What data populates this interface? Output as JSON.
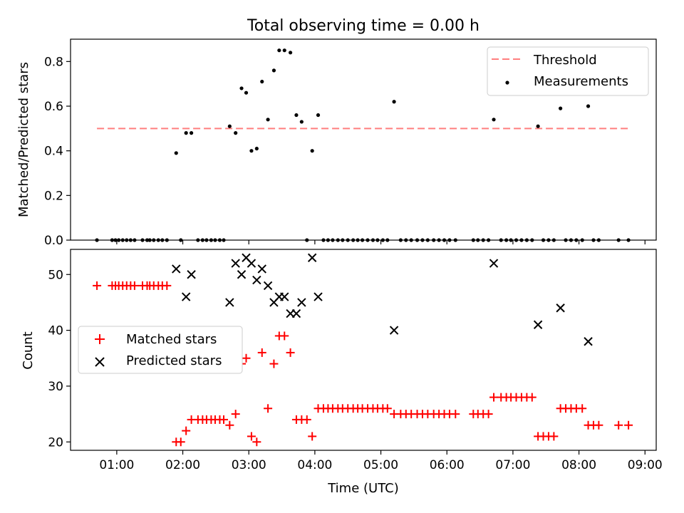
{
  "figure": {
    "title": "Total observing time = 0.00 h",
    "xlabel": "Time (UTC)",
    "xticks": [
      {
        "value": 1,
        "label": "01:00"
      },
      {
        "value": 2,
        "label": "02:00"
      },
      {
        "value": 3,
        "label": "03:00"
      },
      {
        "value": 4,
        "label": "04:00"
      },
      {
        "value": 5,
        "label": "05:00"
      },
      {
        "value": 6,
        "label": "06:00"
      },
      {
        "value": 7,
        "label": "07:00"
      },
      {
        "value": 8,
        "label": "08:00"
      },
      {
        "value": 9,
        "label": "09:00"
      }
    ],
    "xlim": [
      0.3,
      9.17
    ]
  },
  "chart_data": [
    {
      "type": "scatter",
      "ylabel": "Matched/Predicted stars",
      "ylim": [
        0,
        0.9
      ],
      "yticks": [
        0.0,
        0.2,
        0.4,
        0.6,
        0.8
      ],
      "ytick_labels": [
        "0.0",
        "0.2",
        "0.4",
        "0.6",
        "0.8"
      ],
      "legend_position": "top-right",
      "threshold": {
        "name": "Threshold",
        "y": 0.5,
        "x": [
          0.7,
          8.75
        ],
        "color": "#ff7f7f"
      },
      "measurements": {
        "name": "Measurements",
        "color": "#000000",
        "x": [
          0.7,
          0.93,
          0.98,
          1.03,
          1.09,
          1.15,
          1.21,
          1.27,
          1.39,
          1.46,
          1.5,
          1.56,
          1.63,
          1.69,
          1.76,
          1.9,
          1.97,
          2.05,
          2.13,
          2.23,
          2.3,
          2.36,
          2.43,
          2.49,
          2.56,
          2.62,
          2.71,
          2.8,
          2.89,
          2.96,
          3.04,
          3.12,
          3.2,
          3.29,
          3.38,
          3.46,
          3.54,
          3.63,
          3.72,
          3.8,
          3.88,
          3.96,
          4.05,
          4.13,
          4.2,
          4.27,
          4.35,
          4.42,
          4.5,
          4.58,
          4.65,
          4.72,
          4.8,
          4.88,
          4.95,
          5.03,
          5.1,
          5.2,
          5.3,
          5.38,
          5.46,
          5.55,
          5.63,
          5.71,
          5.8,
          5.88,
          5.96,
          6.04,
          6.13,
          6.4,
          6.47,
          6.55,
          6.63,
          6.71,
          6.82,
          6.9,
          6.97,
          7.05,
          7.13,
          7.21,
          7.29,
          7.38,
          7.46,
          7.54,
          7.62,
          7.72,
          7.8,
          7.88,
          7.96,
          8.05,
          8.14,
          8.22,
          8.3,
          8.6,
          8.75
        ],
        "y": [
          0,
          0,
          0,
          0,
          0,
          0,
          0,
          0,
          0,
          0,
          0,
          0,
          0,
          0,
          0,
          0.39,
          0,
          0.48,
          0.48,
          0,
          0,
          0,
          0,
          0,
          0,
          0,
          0.51,
          0.48,
          0.68,
          0.66,
          0.4,
          0.41,
          0.71,
          0.54,
          0.76,
          0.85,
          0.85,
          0.84,
          0.56,
          0.53,
          0,
          0.4,
          0.56,
          0,
          0,
          0,
          0,
          0,
          0,
          0,
          0,
          0,
          0,
          0,
          0,
          0,
          0,
          0.62,
          0,
          0,
          0,
          0,
          0,
          0,
          0,
          0,
          0,
          0,
          0,
          0,
          0,
          0,
          0,
          0.54,
          0,
          0,
          0,
          0,
          0,
          0,
          0,
          0.51,
          0,
          0,
          0,
          0.59,
          0,
          0,
          0,
          0,
          0.6,
          0,
          0,
          0,
          0
        ]
      }
    },
    {
      "type": "scatter",
      "ylabel": "Count",
      "ylim": [
        18.5,
        54.5
      ],
      "yticks": [
        20,
        30,
        40,
        50
      ],
      "ytick_labels": [
        "20",
        "30",
        "40",
        "50"
      ],
      "legend_position": "center-left",
      "series": [
        {
          "name": "Matched stars",
          "marker": "+",
          "color": "#ff0000",
          "x": [
            0.7,
            0.93,
            0.98,
            1.03,
            1.09,
            1.15,
            1.21,
            1.27,
            1.39,
            1.46,
            1.5,
            1.56,
            1.63,
            1.69,
            1.76,
            1.9,
            1.97,
            2.05,
            2.13,
            2.23,
            2.3,
            2.36,
            2.43,
            2.49,
            2.56,
            2.62,
            2.71,
            2.8,
            2.89,
            2.96,
            3.04,
            3.12,
            3.2,
            3.29,
            3.38,
            3.46,
            3.54,
            3.63,
            3.72,
            3.8,
            3.88,
            3.96,
            4.05,
            4.13,
            4.2,
            4.27,
            4.35,
            4.42,
            4.5,
            4.58,
            4.65,
            4.72,
            4.8,
            4.88,
            4.95,
            5.03,
            5.1,
            5.2,
            5.3,
            5.38,
            5.46,
            5.55,
            5.63,
            5.71,
            5.8,
            5.88,
            5.96,
            6.04,
            6.13,
            6.4,
            6.47,
            6.55,
            6.63,
            6.71,
            6.82,
            6.9,
            6.97,
            7.05,
            7.13,
            7.21,
            7.29,
            7.38,
            7.46,
            7.54,
            7.62,
            7.72,
            7.8,
            7.88,
            7.96,
            8.05,
            8.14,
            8.22,
            8.3,
            8.6,
            8.75
          ],
          "y": [
            48,
            48,
            48,
            48,
            48,
            48,
            48,
            48,
            48,
            48,
            48,
            48,
            48,
            48,
            48,
            20,
            20,
            22,
            24,
            24,
            24,
            24,
            24,
            24,
            24,
            24,
            23,
            25,
            34,
            35,
            21,
            20,
            36,
            26,
            34,
            39,
            39,
            36,
            24,
            24,
            24,
            21,
            26,
            26,
            26,
            26,
            26,
            26,
            26,
            26,
            26,
            26,
            26,
            26,
            26,
            26,
            26,
            25,
            25,
            25,
            25,
            25,
            25,
            25,
            25,
            25,
            25,
            25,
            25,
            25,
            25,
            25,
            25,
            28,
            28,
            28,
            28,
            28,
            28,
            28,
            28,
            21,
            21,
            21,
            21,
            26,
            26,
            26,
            26,
            26,
            23,
            23,
            23,
            23,
            23
          ]
        },
        {
          "name": "Predicted stars",
          "marker": "x",
          "color": "#000000",
          "x": [
            1.9,
            2.05,
            2.13,
            2.71,
            2.8,
            2.89,
            2.96,
            3.04,
            3.12,
            3.2,
            3.29,
            3.38,
            3.46,
            3.54,
            3.63,
            3.72,
            3.8,
            3.96,
            4.05,
            5.2,
            6.71,
            7.38,
            7.72,
            8.14
          ],
          "y": [
            51,
            46,
            50,
            45,
            52,
            50,
            53,
            52,
            49,
            51,
            48,
            45,
            46,
            46,
            43,
            43,
            45,
            53,
            46,
            40,
            52,
            41,
            44,
            38
          ]
        }
      ]
    }
  ]
}
